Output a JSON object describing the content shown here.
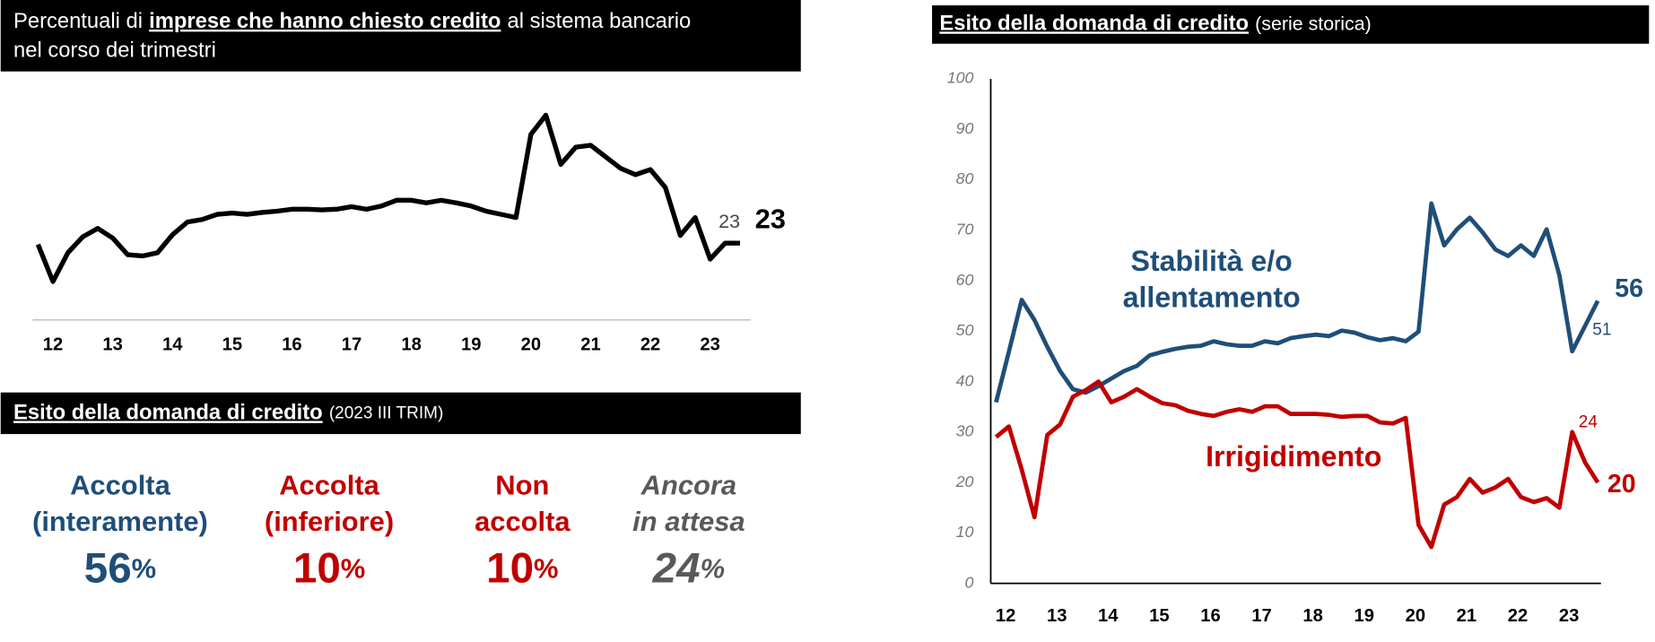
{
  "chart_data": [
    {
      "type": "line",
      "title_parts": [
        "Percentuali di",
        "imprese che hanno chiesto credito",
        "al sistema bancario",
        "nel corso dei trimestri"
      ],
      "x": [
        2012,
        2012.25,
        2012.5,
        2012.75,
        2013,
        2013.25,
        2013.5,
        2013.75,
        2014,
        2014.25,
        2014.5,
        2014.75,
        2015,
        2015.25,
        2015.5,
        2015.75,
        2016,
        2016.25,
        2016.5,
        2016.75,
        2017,
        2017.25,
        2017.5,
        2017.75,
        2018,
        2018.25,
        2018.5,
        2018.75,
        2019,
        2019.25,
        2019.5,
        2019.75,
        2020,
        2020.25,
        2020.5,
        2020.75,
        2021,
        2021.25,
        2021.5,
        2021.75,
        2022,
        2022.25,
        2022.5,
        2022.75,
        2023,
        2023.25,
        2023.5,
        2023.75
      ],
      "values": [
        22.8,
        17,
        21.5,
        24,
        25.3,
        23.8,
        21.2,
        21,
        21.5,
        24.3,
        26.3,
        26.7,
        27.5,
        27.7,
        27.5,
        27.8,
        28,
        28.3,
        28.3,
        28.2,
        28.3,
        28.7,
        28.3,
        28.8,
        29.7,
        29.7,
        29.3,
        29.7,
        29.3,
        28.8,
        28,
        27.5,
        27,
        40,
        43,
        35.3,
        38,
        38.3,
        36.5,
        34.7,
        33.7,
        34.5,
        31.7,
        24.2,
        27,
        20.5,
        23,
        23
      ],
      "color": "#000000",
      "xlim": [
        2012,
        2023.75
      ],
      "ylim": [
        11,
        49
      ],
      "xticks": [
        {
          "value": 2012.25,
          "label": "12"
        },
        {
          "value": 2013.25,
          "label": "13"
        },
        {
          "value": 2014.25,
          "label": "14"
        },
        {
          "value": 2015.25,
          "label": "15"
        },
        {
          "value": 2016.25,
          "label": "16"
        },
        {
          "value": 2017.25,
          "label": "17"
        },
        {
          "value": 2018.25,
          "label": "18"
        },
        {
          "value": 2019.25,
          "label": "19"
        },
        {
          "value": 2020.25,
          "label": "20"
        },
        {
          "value": 2021.25,
          "label": "21"
        },
        {
          "value": 2022.25,
          "label": "22"
        },
        {
          "value": 2023.25,
          "label": "23"
        }
      ]
    },
    {
      "type": "line",
      "title_parts": [
        "Esito della domanda di credito",
        "(serie storica)"
      ],
      "x": [
        2012,
        2012.25,
        2012.5,
        2012.75,
        2013,
        2013.25,
        2013.5,
        2013.75,
        2014,
        2014.25,
        2014.5,
        2014.75,
        2015,
        2015.25,
        2015.5,
        2015.75,
        2016,
        2016.25,
        2016.5,
        2016.75,
        2017,
        2017.25,
        2017.5,
        2017.75,
        2018,
        2018.25,
        2018.5,
        2018.75,
        2019,
        2019.25,
        2019.5,
        2019.75,
        2020,
        2020.25,
        2020.5,
        2020.75,
        2021,
        2021.25,
        2021.5,
        2021.75,
        2022,
        2022.25,
        2022.5,
        2022.75,
        2023,
        2023.25,
        2023.5,
        2023.75
      ],
      "series": [
        {
          "name": "Stabilità e/o allentamento",
          "color": "#1f4e79",
          "values": [
            35.9,
            45.9,
            56.2,
            52.2,
            46.9,
            42.1,
            38.5,
            37.8,
            39.1,
            40.6,
            42.1,
            43.1,
            45.2,
            45.9,
            46.5,
            46.9,
            47.1,
            48,
            47.4,
            47.1,
            47.1,
            48,
            47.6,
            48.6,
            49,
            49.3,
            49,
            50.1,
            49.7,
            48.8,
            48.2,
            48.6,
            48,
            49.9,
            75.3,
            67,
            70.2,
            72.5,
            69.6,
            66.2,
            64.9,
            67,
            64.9,
            70.2,
            61.1,
            46,
            51,
            56
          ]
        },
        {
          "name": "Irrigidimento",
          "color": "#c00000",
          "values": [
            29,
            31.1,
            22.6,
            13.1,
            29.4,
            31.5,
            37,
            38.3,
            40,
            35.9,
            37,
            38.5,
            37,
            35.7,
            35.3,
            34.2,
            33.6,
            33.2,
            34,
            34.5,
            34,
            35.1,
            35.1,
            33.6,
            33.6,
            33.6,
            33.4,
            33,
            33.2,
            33.2,
            31.9,
            31.7,
            32.8,
            11.6,
            7.2,
            15.6,
            17.1,
            20.7,
            18,
            19,
            20.7,
            17.1,
            16.1,
            16.9,
            15,
            30,
            24,
            20
          ]
        }
      ],
      "xlim": [
        2012,
        2023.75
      ],
      "ylim": [
        0,
        100
      ],
      "yticks": [
        0,
        10,
        20,
        30,
        40,
        50,
        60,
        70,
        80,
        90,
        100
      ],
      "xticks": [
        {
          "value": 2012.25,
          "label": "12"
        },
        {
          "value": 2013.25,
          "label": "13"
        },
        {
          "value": 2014.25,
          "label": "14"
        },
        {
          "value": 2015.25,
          "label": "15"
        },
        {
          "value": 2016.25,
          "label": "16"
        },
        {
          "value": 2017.25,
          "label": "17"
        },
        {
          "value": 2018.25,
          "label": "18"
        },
        {
          "value": 2019.25,
          "label": "19"
        },
        {
          "value": 2020.25,
          "label": "20"
        },
        {
          "value": 2021.25,
          "label": "21"
        },
        {
          "value": 2022.25,
          "label": "22"
        },
        {
          "value": 2023.25,
          "label": "23"
        }
      ]
    }
  ],
  "panel": {
    "title_parts": [
      "Esito della domanda di credito",
      "(2023 III TRIM)"
    ],
    "items": [
      {
        "label_lines": [
          "Accolta",
          "(interamente)"
        ],
        "value": 56,
        "unit": "%",
        "color": "#1f4e79",
        "italic": false
      },
      {
        "label_lines": [
          "Accolta",
          "(inferiore)"
        ],
        "value": 10,
        "unit": "%",
        "color": "#c00000",
        "italic": false
      },
      {
        "label_lines": [
          "Non",
          "accolta"
        ],
        "value": 10,
        "unit": "%",
        "color": "#c00000",
        "italic": false
      },
      {
        "label_lines": [
          "Ancora",
          "in attesa"
        ],
        "value": 24,
        "unit": "%",
        "color": "#595959",
        "italic": true
      }
    ]
  }
}
